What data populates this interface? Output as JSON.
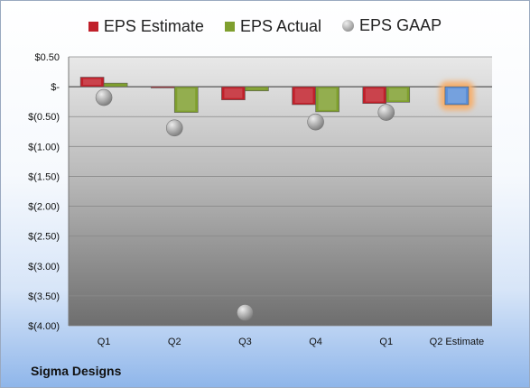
{
  "company": "Sigma Designs",
  "legend": {
    "estimate_label": "EPS Estimate",
    "actual_label": "EPS Actual",
    "gaap_label": "EPS GAAP"
  },
  "colors": {
    "estimate": "#c0202a",
    "actual": "#7f9f2e",
    "gaap": "#a6a6a6",
    "projected": "#5b8fd8",
    "projected_glow": "#f5b070"
  },
  "chart_data": {
    "type": "bar",
    "categories": [
      "Q1",
      "Q2",
      "Q3",
      "Q4",
      "Q1",
      "Q2 Estimate"
    ],
    "ylim": [
      -4.0,
      0.5
    ],
    "yticks": [
      0.5,
      0,
      -0.5,
      -1.0,
      -1.5,
      -2.0,
      -2.5,
      -3.0,
      -3.5,
      -4.0
    ],
    "ytick_labels": [
      "$0.50",
      "$-",
      "$(0.50)",
      "$(1.00)",
      "$(1.50)",
      "$(2.00)",
      "$(2.50)",
      "$(3.00)",
      "$(3.50)",
      "$(4.00)"
    ],
    "grid": true,
    "legend_position": "top",
    "series": [
      {
        "name": "EPS Estimate",
        "type": "bar",
        "values": [
          0.16,
          -0.02,
          -0.22,
          -0.3,
          -0.28,
          -0.3
        ]
      },
      {
        "name": "EPS Actual",
        "type": "bar",
        "values": [
          0.06,
          -0.43,
          -0.07,
          -0.42,
          -0.26,
          null
        ]
      },
      {
        "name": "EPS GAAP",
        "type": "scatter",
        "values": [
          -0.18,
          -0.69,
          -3.78,
          -0.59,
          -0.43,
          null
        ]
      }
    ]
  }
}
